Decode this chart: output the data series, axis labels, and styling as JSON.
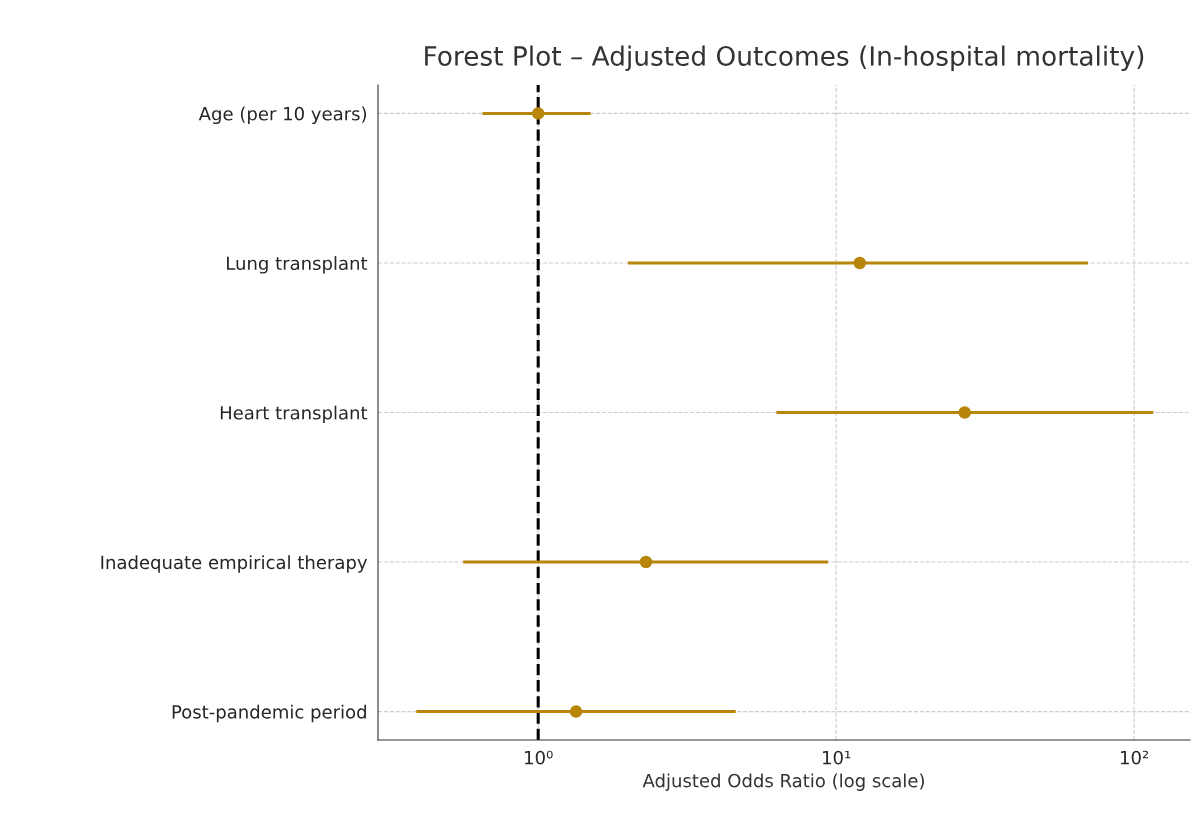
{
  "chart_data": {
    "type": "scatter",
    "orientation": "horizontal",
    "title": "Forest Plot – Adjusted Outcomes (In-hospital mortality)",
    "xlabel": "Adjusted Odds Ratio (log scale)",
    "categories": [
      "Age (per 10 years)",
      "Lung transplant",
      "Heart transplant",
      "Inadequate empirical therapy",
      "Post-pandemic period"
    ],
    "values": [
      1.0,
      12,
      27,
      2.3,
      1.34
    ],
    "errors": [
      [
        0.65,
        1.5
      ],
      [
        2.0,
        70
      ],
      [
        6.3,
        116
      ],
      [
        0.56,
        9.4
      ],
      [
        0.39,
        4.6
      ]
    ],
    "color": "#b8860b",
    "marker": "circle",
    "log": "x",
    "xlim": [
      0.29,
      154
    ],
    "xticks": [
      {
        "value": 1,
        "label": "10⁰"
      },
      {
        "value": 10,
        "label": "10¹"
      },
      {
        "value": 100,
        "label": "10²"
      }
    ],
    "ref_lines": [
      {
        "axis": "x",
        "value": 1,
        "color": "#000000",
        "line_style": "dashed"
      }
    ],
    "grid": true
  }
}
